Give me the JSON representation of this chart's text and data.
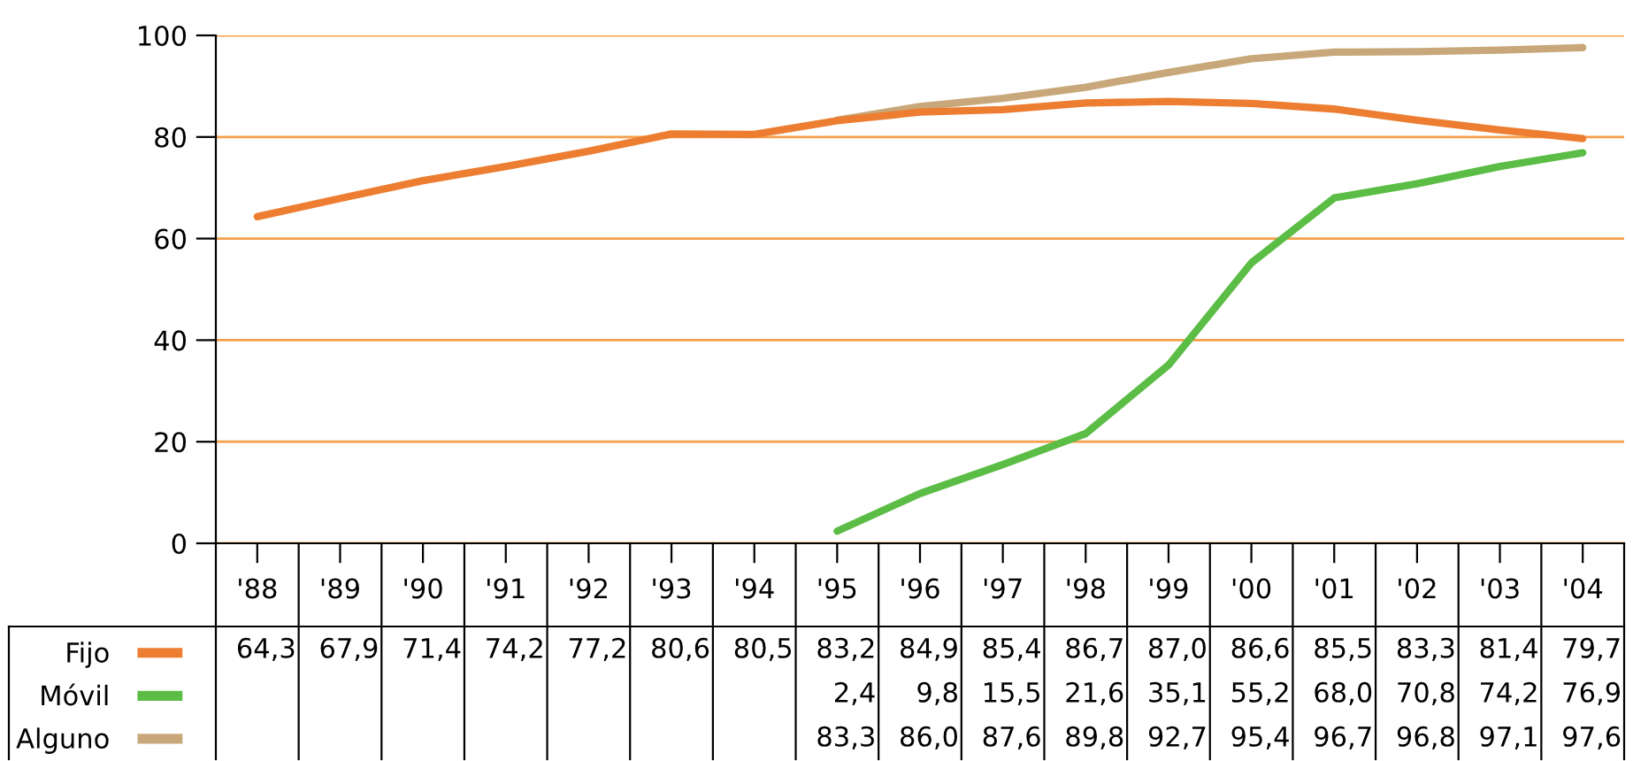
{
  "chart_data": {
    "type": "line",
    "categories": [
      "'88",
      "'89",
      "'90",
      "'91",
      "'92",
      "'93",
      "'94",
      "'95",
      "'96",
      "'97",
      "'98",
      "'99",
      "'00",
      "'01",
      "'02",
      "'03",
      "'04"
    ],
    "series": [
      {
        "name": "Fijo",
        "color": "#ed7d31",
        "values": [
          64.3,
          67.9,
          71.4,
          74.2,
          77.2,
          80.6,
          80.5,
          83.2,
          84.9,
          85.4,
          86.7,
          87.0,
          86.6,
          85.5,
          83.3,
          81.4,
          79.7
        ],
        "value_labels": [
          "64,3",
          "67,9",
          "71,4",
          "74,2",
          "77,2",
          "80,6",
          "80,5",
          "83,2",
          "84,9",
          "85,4",
          "86,7",
          "87,0",
          "86,6",
          "85,5",
          "83,3",
          "81,4",
          "79,7"
        ]
      },
      {
        "name": "Móvil",
        "color": "#5bbd45",
        "values": [
          null,
          null,
          null,
          null,
          null,
          null,
          null,
          2.4,
          9.8,
          15.5,
          21.6,
          35.1,
          55.2,
          68.0,
          70.8,
          74.2,
          76.9
        ],
        "value_labels": [
          null,
          null,
          null,
          null,
          null,
          null,
          null,
          "2,4",
          "9,8",
          "15,5",
          "21,6",
          "35,1",
          "55,2",
          "68,0",
          "70,8",
          "74,2",
          "76,9"
        ]
      },
      {
        "name": "Alguno",
        "color": "#c8a87a",
        "values": [
          null,
          null,
          null,
          null,
          null,
          null,
          null,
          83.3,
          86.0,
          87.6,
          89.8,
          92.7,
          95.4,
          96.7,
          96.8,
          97.1,
          97.6
        ],
        "value_labels": [
          null,
          null,
          null,
          null,
          null,
          null,
          null,
          "83,3",
          "86,0",
          "87,6",
          "89,8",
          "92,7",
          "95,4",
          "96,7",
          "96,8",
          "97,1",
          "97,6"
        ]
      }
    ],
    "ylim": [
      0,
      100
    ],
    "yticks": [
      0,
      20,
      40,
      60,
      80,
      100
    ],
    "grid": "y",
    "legend": "bottom left",
    "marker": "none",
    "line_style": "solid"
  }
}
